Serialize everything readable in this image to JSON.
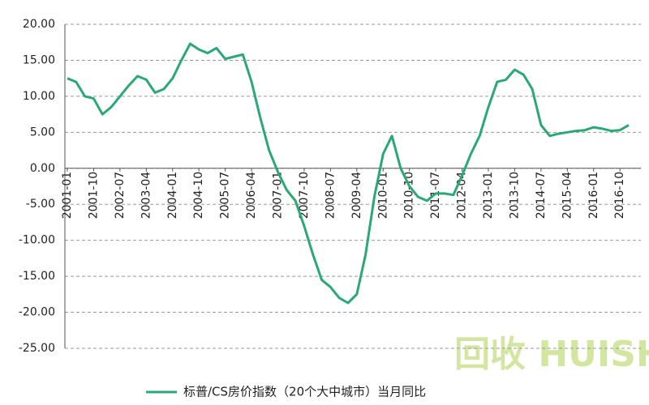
{
  "chart_data": {
    "type": "line",
    "categories": [
      "2001-01",
      null,
      null,
      "2001-10",
      null,
      null,
      "2002-07",
      null,
      null,
      "2003-04",
      null,
      null,
      "2004-01",
      null,
      null,
      "2004-10",
      null,
      null,
      "2005-07",
      null,
      null,
      "2006-04",
      null,
      null,
      "2007-01",
      null,
      null,
      "2007-10",
      null,
      null,
      "2008-07",
      null,
      null,
      "2009-04",
      null,
      null,
      "2010-01",
      null,
      null,
      "2010-10",
      null,
      null,
      "2011-07",
      null,
      null,
      "2012-04",
      null,
      null,
      "2013-01",
      null,
      null,
      "2013-10",
      null,
      null,
      "2014-07",
      null,
      null,
      "2015-04",
      null,
      null,
      "2016-01",
      null,
      null,
      "2016-10",
      null
    ],
    "series": [
      {
        "name": "标普/CS房价指数（20个大中城市）当月同比",
        "color": "#2aa876",
        "values": [
          12.5,
          12,
          10,
          9.7,
          7.5,
          8.5,
          10,
          11.5,
          12.8,
          12.3,
          10.5,
          11,
          12.5,
          15,
          17.3,
          16.5,
          16,
          16.7,
          15.2,
          15.5,
          15.8,
          12,
          7,
          2.5,
          -0.5,
          -3,
          -4.5,
          -8,
          -12,
          -15.5,
          -16.5,
          -18,
          -18.7,
          -17.5,
          -12,
          -4,
          2,
          4.5,
          0,
          -2.5,
          -4,
          -4.5,
          -3.5,
          -3.5,
          -3.7,
          -1,
          2,
          4.5,
          8.5,
          12,
          12.3,
          13.7,
          13,
          11,
          6,
          4.5,
          4.8,
          5,
          5.2,
          5.3,
          5.7,
          5.5,
          5.2,
          5.3,
          6
        ]
      }
    ],
    "ylim": [
      -25,
      20
    ],
    "yticks": [
      {
        "value": -25,
        "label": "-25.00"
      },
      {
        "value": -20,
        "label": "-20.00"
      },
      {
        "value": -15,
        "label": "-15.00"
      },
      {
        "value": -10,
        "label": "-10.00"
      },
      {
        "value": -5,
        "label": "-5.00"
      },
      {
        "value": 0,
        "label": "0.00"
      },
      {
        "value": 5,
        "label": "5.00"
      },
      {
        "value": 10,
        "label": "10.00"
      },
      {
        "value": 15,
        "label": "15.00"
      },
      {
        "value": 20,
        "label": "20.00"
      }
    ],
    "grid": true,
    "legend": "bottom",
    "watermark": "回收 HUISHOUREN"
  }
}
